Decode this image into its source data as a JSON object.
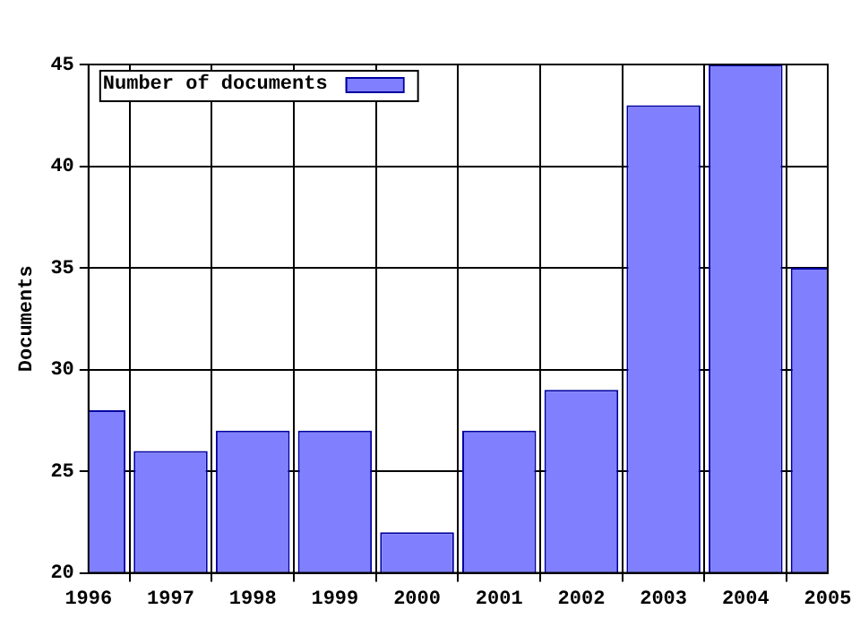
{
  "chart_data": {
    "type": "bar",
    "ylabel": "Documents",
    "x": [
      1996,
      1997,
      1998,
      1999,
      2000,
      2001,
      2002,
      2003,
      2004,
      2005
    ],
    "series": [
      {
        "name": "Number of documents",
        "color": "#8080ff",
        "values": [
          28,
          26,
          27,
          27,
          22,
          27,
          29,
          43,
          45,
          35
        ]
      }
    ],
    "xlim": [
      1996,
      2005
    ],
    "xticks": [
      {
        "value": 1996,
        "label": "1996"
      },
      {
        "value": 1997,
        "label": "1997"
      },
      {
        "value": 1998,
        "label": "1998"
      },
      {
        "value": 1999,
        "label": "1999"
      },
      {
        "value": 2000,
        "label": "2000"
      },
      {
        "value": 2001,
        "label": "2001"
      },
      {
        "value": 2002,
        "label": "2002"
      },
      {
        "value": 2003,
        "label": "2003"
      },
      {
        "value": 2004,
        "label": "2004"
      },
      {
        "value": 2005,
        "label": "2005"
      }
    ],
    "ylim": [
      20,
      45
    ],
    "yticks": [
      20,
      25,
      30,
      35,
      40,
      45
    ],
    "grid": true,
    "legend": "top left"
  }
}
